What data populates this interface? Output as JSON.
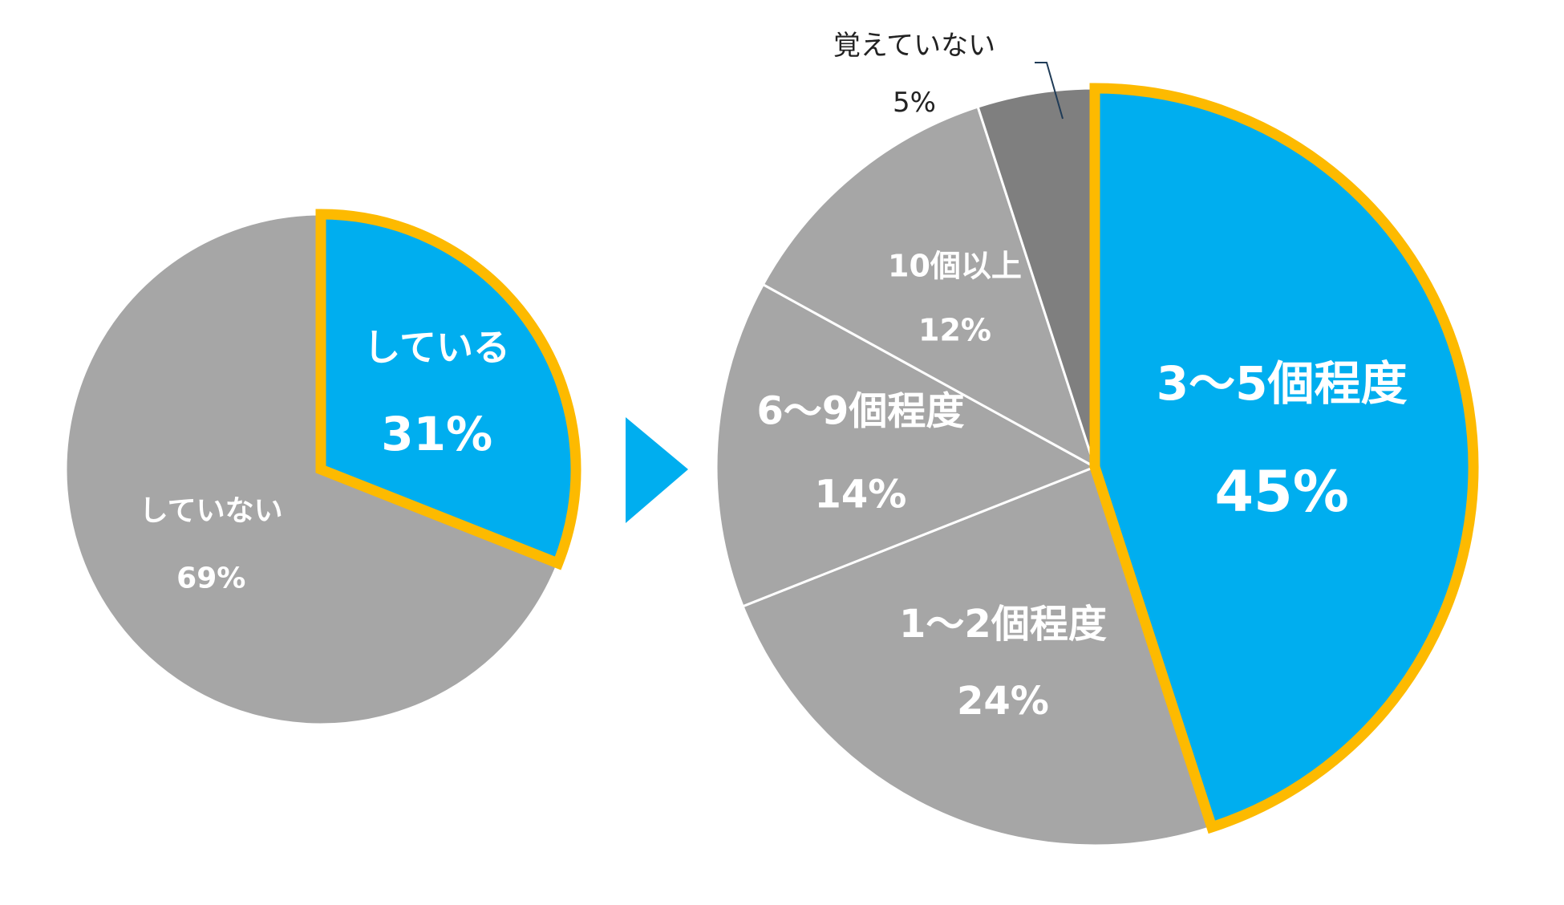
{
  "chart_data": [
    {
      "type": "pie",
      "start_angle_deg": 0,
      "direction": "clockwise",
      "slices": [
        {
          "label": "している",
          "value": 31,
          "value_label": "31%",
          "color": "#00AEEF",
          "highlight": true
        },
        {
          "label": "していない",
          "value": 69,
          "value_label": "69%",
          "color": "#A6A6A6",
          "highlight": false
        }
      ]
    },
    {
      "type": "pie",
      "start_angle_deg": 0,
      "direction": "clockwise",
      "slices": [
        {
          "label": "3〜5個程度",
          "value": 45,
          "value_label": "45%",
          "color": "#00AEEF",
          "highlight": true
        },
        {
          "label": "1〜2個程度",
          "value": 24,
          "value_label": "24%",
          "color": "#A6A6A6",
          "highlight": false
        },
        {
          "label": "6〜9個程度",
          "value": 14,
          "value_label": "14%",
          "color": "#A6A6A6",
          "highlight": false
        },
        {
          "label": "10個以上",
          "value": 12,
          "value_label": "12%",
          "color": "#A6A6A6",
          "highlight": false
        },
        {
          "label": "覚えていない",
          "value": 5,
          "value_label": "5%",
          "color": "#7F7F7F",
          "highlight": false
        }
      ]
    }
  ],
  "colors": {
    "highlight_border": "#FDBA00",
    "arrow": "#00AEEF",
    "slice_divider": "#FFFFFF",
    "leader_line": "#1F3B57"
  }
}
